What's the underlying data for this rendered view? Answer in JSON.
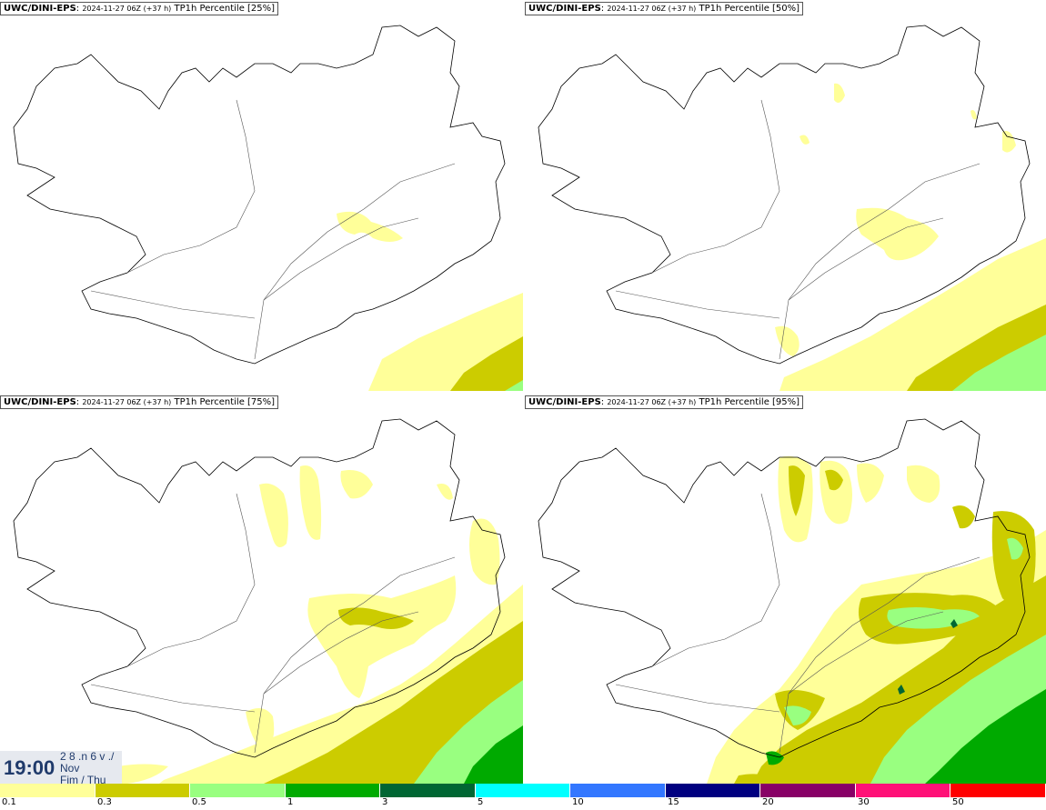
{
  "panels": [
    {
      "model": "UWC/DINI-EPS",
      "run": "2024-11-27 06Z (+37 h)",
      "param": "TP1h Percentile [25%]"
    },
    {
      "model": "UWC/DINI-EPS",
      "run": "2024-11-27 06Z (+37 h)",
      "param": "TP1h Percentile [50%]"
    },
    {
      "model": "UWC/DINI-EPS",
      "run": "2024-11-27 06Z (+37 h)",
      "param": "TP1h Percentile [75%]"
    },
    {
      "model": "UWC/DINI-EPS",
      "run": "2024-11-27 06Z (+37 h)",
      "param": "TP1h Percentile [95%]"
    }
  ],
  "timestamp": {
    "time": "19:00",
    "date_line1": "2 8 .n 6 v ./",
    "date_line2": "Nov",
    "date_line3": "Fim / Thu"
  },
  "legend": {
    "colors": [
      "#ffff99",
      "#cccc00",
      "#99ff80",
      "#00aa00",
      "#006633",
      "#00ffff",
      "#3377ff",
      "#000080",
      "#880066",
      "#ff1177",
      "#ff0000"
    ],
    "labels": [
      "0.1",
      "0.3",
      "0.5",
      "1",
      "3",
      "5",
      "10",
      "15",
      "20",
      "30",
      "50"
    ]
  }
}
